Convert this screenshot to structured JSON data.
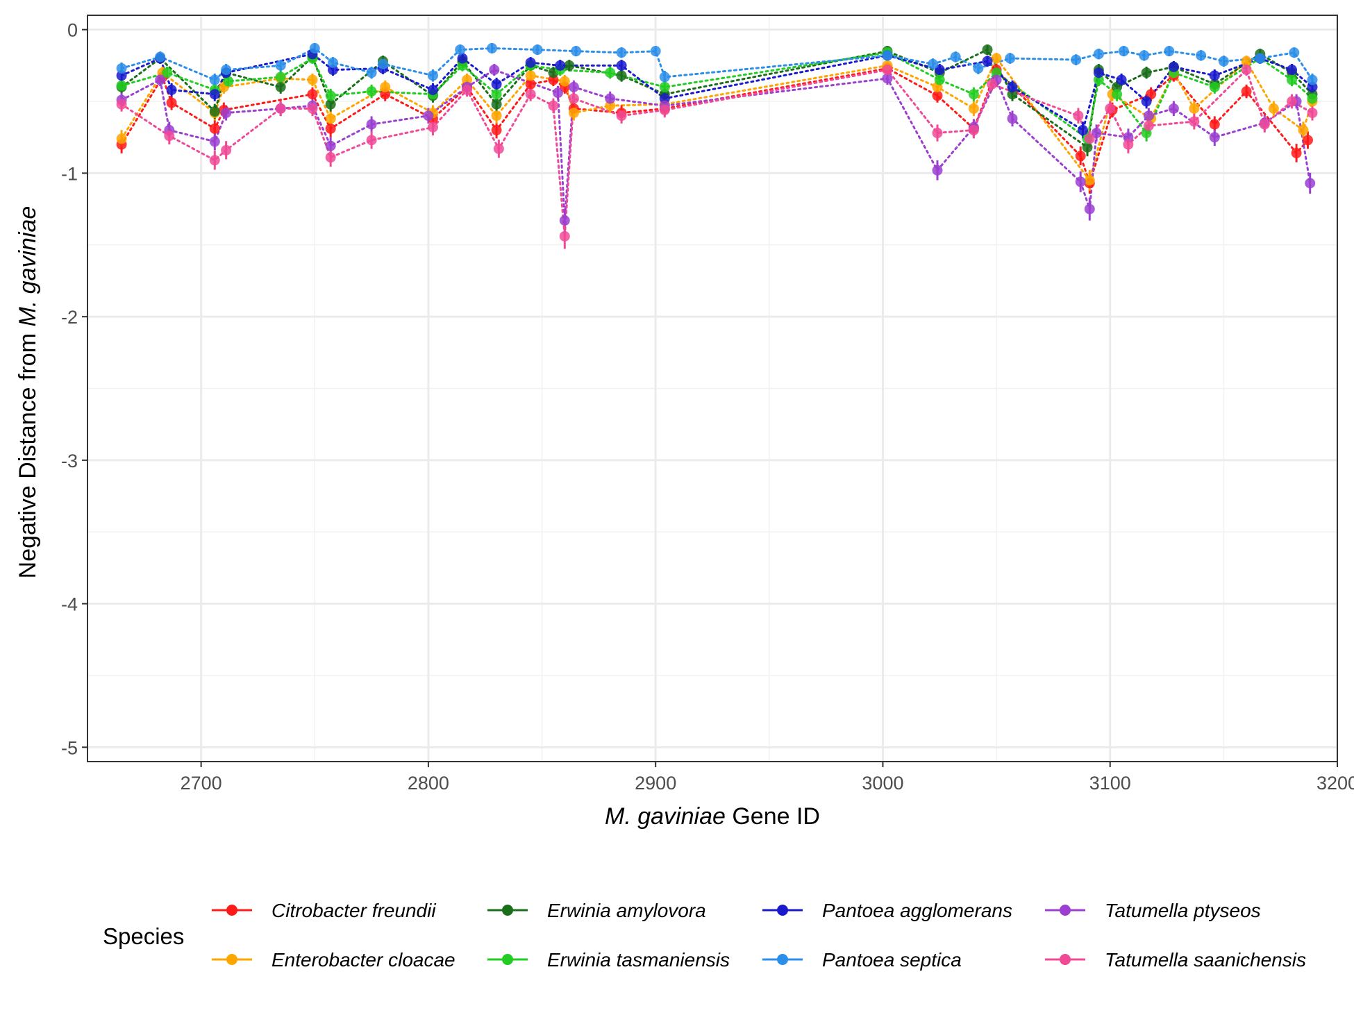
{
  "chart_data": {
    "type": "line",
    "xlabel_italic": "M. gaviniae",
    "xlabel_rest": " Gene ID",
    "ylabel_prefix": "Negative Distance from ",
    "ylabel_italic": "M. gaviniae",
    "xlim": [
      2650,
      3200
    ],
    "ylim": [
      -5.1,
      0.1
    ],
    "x_ticks": [
      2700,
      2800,
      2900,
      3000,
      3100,
      3200
    ],
    "y_ticks": [
      0,
      -1,
      -2,
      -3,
      -4,
      -5
    ],
    "grid": true,
    "legend_title": "Species",
    "legend_position": "bottom",
    "series": [
      {
        "name": "Citrobacter freundii",
        "color": "#ff1a1a",
        "points": [
          [
            2665,
            -0.8
          ],
          [
            2683,
            -0.33
          ],
          [
            2687,
            -0.51
          ],
          [
            2706,
            -0.69
          ],
          [
            2710,
            -0.56
          ],
          [
            2749,
            -0.45
          ],
          [
            2757,
            -0.69
          ],
          [
            2781,
            -0.45
          ],
          [
            2802,
            -0.62
          ],
          [
            2817,
            -0.4
          ],
          [
            2830,
            -0.7
          ],
          [
            2845,
            -0.38
          ],
          [
            2855,
            -0.35
          ],
          [
            2860,
            -0.4
          ],
          [
            2864,
            -0.55
          ],
          [
            2885,
            -0.58
          ],
          [
            2904,
            -0.55
          ],
          [
            3002,
            -0.27
          ],
          [
            3024,
            -0.46
          ],
          [
            3040,
            -0.69
          ],
          [
            3050,
            -0.28
          ],
          [
            3087,
            -0.88
          ],
          [
            3091,
            -1.07
          ],
          [
            3101,
            -0.56
          ],
          [
            3118,
            -0.45
          ],
          [
            3128,
            -0.32
          ],
          [
            3146,
            -0.66
          ],
          [
            3160,
            -0.43
          ],
          [
            3182,
            -0.86
          ],
          [
            3187,
            -0.77
          ]
        ]
      },
      {
        "name": "Enterobacter cloacae",
        "color": "#ffa500",
        "points": [
          [
            2665,
            -0.76
          ],
          [
            2683,
            -0.3
          ],
          [
            2706,
            -0.58
          ],
          [
            2710,
            -0.4
          ],
          [
            2735,
            -0.34
          ],
          [
            2749,
            -0.35
          ],
          [
            2757,
            -0.62
          ],
          [
            2781,
            -0.4
          ],
          [
            2802,
            -0.58
          ],
          [
            2817,
            -0.35
          ],
          [
            2830,
            -0.6
          ],
          [
            2845,
            -0.32
          ],
          [
            2860,
            -0.36
          ],
          [
            2864,
            -0.58
          ],
          [
            2880,
            -0.53
          ],
          [
            2904,
            -0.52
          ],
          [
            3002,
            -0.25
          ],
          [
            3024,
            -0.4
          ],
          [
            3040,
            -0.55
          ],
          [
            3050,
            -0.2
          ],
          [
            3091,
            -1.05
          ],
          [
            3101,
            -0.45
          ],
          [
            3118,
            -0.62
          ],
          [
            3128,
            -0.3
          ],
          [
            3137,
            -0.55
          ],
          [
            3160,
            -0.22
          ],
          [
            3172,
            -0.55
          ],
          [
            3185,
            -0.7
          ],
          [
            3189,
            -0.5
          ]
        ]
      },
      {
        "name": "Erwinia amylovora",
        "color": "#1a6e1a",
        "points": [
          [
            2665,
            -0.4
          ],
          [
            2682,
            -0.2
          ],
          [
            2706,
            -0.57
          ],
          [
            2711,
            -0.3
          ],
          [
            2735,
            -0.4
          ],
          [
            2749,
            -0.19
          ],
          [
            2757,
            -0.52
          ],
          [
            2780,
            -0.22
          ],
          [
            2802,
            -0.46
          ],
          [
            2815,
            -0.22
          ],
          [
            2830,
            -0.52
          ],
          [
            2845,
            -0.25
          ],
          [
            2855,
            -0.3
          ],
          [
            2862,
            -0.25
          ],
          [
            2885,
            -0.32
          ],
          [
            2904,
            -0.45
          ],
          [
            3002,
            -0.15
          ],
          [
            3025,
            -0.3
          ],
          [
            3046,
            -0.14
          ],
          [
            3057,
            -0.45
          ],
          [
            3090,
            -0.82
          ],
          [
            3095,
            -0.28
          ],
          [
            3103,
            -0.4
          ],
          [
            3116,
            -0.3
          ],
          [
            3128,
            -0.26
          ],
          [
            3146,
            -0.38
          ],
          [
            3166,
            -0.17
          ],
          [
            3180,
            -0.3
          ],
          [
            3189,
            -0.45
          ]
        ]
      },
      {
        "name": "Erwinia tasmaniensis",
        "color": "#22cc22",
        "points": [
          [
            2665,
            -0.39
          ],
          [
            2685,
            -0.3
          ],
          [
            2706,
            -0.42
          ],
          [
            2712,
            -0.36
          ],
          [
            2735,
            -0.33
          ],
          [
            2749,
            -0.2
          ],
          [
            2757,
            -0.46
          ],
          [
            2775,
            -0.43
          ],
          [
            2802,
            -0.45
          ],
          [
            2815,
            -0.25
          ],
          [
            2830,
            -0.45
          ],
          [
            2845,
            -0.25
          ],
          [
            2858,
            -0.28
          ],
          [
            2880,
            -0.3
          ],
          [
            2904,
            -0.4
          ],
          [
            3002,
            -0.16
          ],
          [
            3025,
            -0.35
          ],
          [
            3040,
            -0.45
          ],
          [
            3050,
            -0.3
          ],
          [
            3090,
            -0.76
          ],
          [
            3095,
            -0.35
          ],
          [
            3103,
            -0.45
          ],
          [
            3116,
            -0.72
          ],
          [
            3128,
            -0.3
          ],
          [
            3146,
            -0.4
          ],
          [
            3166,
            -0.2
          ],
          [
            3180,
            -0.35
          ],
          [
            3189,
            -0.48
          ]
        ]
      },
      {
        "name": "Pantoea agglomerans",
        "color": "#1a1acc",
        "points": [
          [
            2665,
            -0.32
          ],
          [
            2682,
            -0.2
          ],
          [
            2687,
            -0.42
          ],
          [
            2706,
            -0.45
          ],
          [
            2711,
            -0.3
          ],
          [
            2749,
            -0.17
          ],
          [
            2758,
            -0.28
          ],
          [
            2780,
            -0.27
          ],
          [
            2802,
            -0.42
          ],
          [
            2815,
            -0.2
          ],
          [
            2830,
            -0.38
          ],
          [
            2845,
            -0.23
          ],
          [
            2858,
            -0.25
          ],
          [
            2885,
            -0.25
          ],
          [
            2904,
            -0.48
          ],
          [
            3002,
            -0.18
          ],
          [
            3025,
            -0.28
          ],
          [
            3046,
            -0.22
          ],
          [
            3057,
            -0.4
          ],
          [
            3088,
            -0.7
          ],
          [
            3095,
            -0.3
          ],
          [
            3105,
            -0.35
          ],
          [
            3116,
            -0.5
          ],
          [
            3128,
            -0.26
          ],
          [
            3146,
            -0.32
          ],
          [
            3166,
            -0.2
          ],
          [
            3180,
            -0.28
          ],
          [
            3189,
            -0.4
          ]
        ]
      },
      {
        "name": "Pantoea septica",
        "color": "#2b8ee8",
        "points": [
          [
            2665,
            -0.27
          ],
          [
            2682,
            -0.19
          ],
          [
            2706,
            -0.35
          ],
          [
            2711,
            -0.28
          ],
          [
            2735,
            -0.25
          ],
          [
            2750,
            -0.13
          ],
          [
            2758,
            -0.23
          ],
          [
            2775,
            -0.3
          ],
          [
            2780,
            -0.24
          ],
          [
            2802,
            -0.32
          ],
          [
            2814,
            -0.14
          ],
          [
            2828,
            -0.13
          ],
          [
            2848,
            -0.14
          ],
          [
            2865,
            -0.15
          ],
          [
            2885,
            -0.16
          ],
          [
            2900,
            -0.15
          ],
          [
            2904,
            -0.33
          ],
          [
            3002,
            -0.18
          ],
          [
            3022,
            -0.24
          ],
          [
            3032,
            -0.19
          ],
          [
            3042,
            -0.27
          ],
          [
            3056,
            -0.2
          ],
          [
            3085,
            -0.21
          ],
          [
            3095,
            -0.17
          ],
          [
            3106,
            -0.15
          ],
          [
            3115,
            -0.18
          ],
          [
            3126,
            -0.15
          ],
          [
            3140,
            -0.18
          ],
          [
            3150,
            -0.22
          ],
          [
            3166,
            -0.2
          ],
          [
            3181,
            -0.16
          ],
          [
            3189,
            -0.35
          ]
        ]
      },
      {
        "name": "Tatumella ptyseos",
        "color": "#9b3fd1",
        "points": [
          [
            2665,
            -0.49
          ],
          [
            2682,
            -0.35
          ],
          [
            2686,
            -0.7
          ],
          [
            2706,
            -0.78
          ],
          [
            2711,
            -0.58
          ],
          [
            2735,
            -0.55
          ],
          [
            2749,
            -0.53
          ],
          [
            2757,
            -0.81
          ],
          [
            2775,
            -0.66
          ],
          [
            2800,
            -0.6
          ],
          [
            2817,
            -0.4
          ],
          [
            2829,
            -0.28
          ],
          [
            2857,
            -0.44
          ],
          [
            2860,
            -1.33
          ],
          [
            2864,
            -0.4
          ],
          [
            2880,
            -0.48
          ],
          [
            2904,
            -0.53
          ],
          [
            3002,
            -0.34
          ],
          [
            3024,
            -0.98
          ],
          [
            3040,
            -0.68
          ],
          [
            3050,
            -0.35
          ],
          [
            3057,
            -0.62
          ],
          [
            3087,
            -1.06
          ],
          [
            3091,
            -1.25
          ],
          [
            3094,
            -0.72
          ],
          [
            3108,
            -0.75
          ],
          [
            3117,
            -0.6
          ],
          [
            3128,
            -0.55
          ],
          [
            3146,
            -0.75
          ],
          [
            3168,
            -0.65
          ],
          [
            3182,
            -0.5
          ],
          [
            3188,
            -1.07
          ]
        ]
      },
      {
        "name": "Tatumella saanichensis",
        "color": "#f04a97",
        "points": [
          [
            2665,
            -0.52
          ],
          [
            2686,
            -0.74
          ],
          [
            2706,
            -0.91
          ],
          [
            2711,
            -0.84
          ],
          [
            2735,
            -0.55
          ],
          [
            2749,
            -0.55
          ],
          [
            2757,
            -0.89
          ],
          [
            2775,
            -0.77
          ],
          [
            2802,
            -0.68
          ],
          [
            2817,
            -0.42
          ],
          [
            2831,
            -0.83
          ],
          [
            2845,
            -0.45
          ],
          [
            2855,
            -0.53
          ],
          [
            2860,
            -1.44
          ],
          [
            2864,
            -0.48
          ],
          [
            2885,
            -0.6
          ],
          [
            2904,
            -0.56
          ],
          [
            3002,
            -0.28
          ],
          [
            3024,
            -0.72
          ],
          [
            3040,
            -0.7
          ],
          [
            3048,
            -0.38
          ],
          [
            3086,
            -0.6
          ],
          [
            3091,
            -0.76
          ],
          [
            3100,
            -0.55
          ],
          [
            3108,
            -0.8
          ],
          [
            3117,
            -0.67
          ],
          [
            3137,
            -0.64
          ],
          [
            3160,
            -0.28
          ],
          [
            3168,
            -0.66
          ],
          [
            3180,
            -0.5
          ],
          [
            3189,
            -0.58
          ]
        ]
      }
    ]
  }
}
